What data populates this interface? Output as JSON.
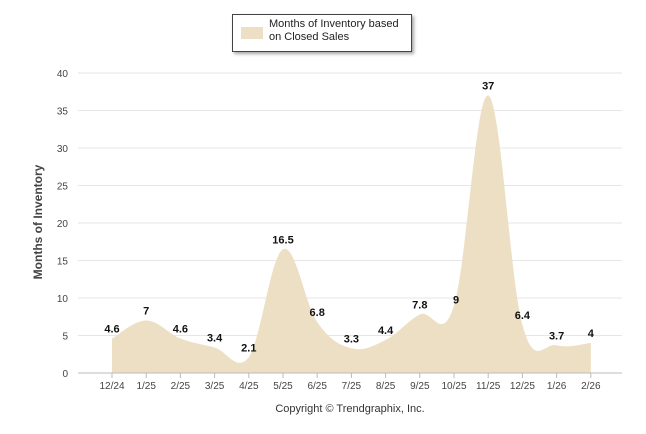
{
  "chart_data": {
    "type": "area",
    "legend": "Months of Inventory based on Closed Sales",
    "legend_position": "top-center",
    "ylabel": "Months of Inventory",
    "xlabel": "",
    "ylim": [
      0,
      40
    ],
    "yticks": [
      0,
      5,
      10,
      15,
      20,
      25,
      30,
      35,
      40
    ],
    "grid": true,
    "categories": [
      "12/24",
      "1/25",
      "2/25",
      "3/25",
      "4/25",
      "5/25",
      "6/25",
      "7/25",
      "8/25",
      "9/25",
      "10/25",
      "11/25",
      "12/25",
      "1/26",
      "2/26"
    ],
    "values": [
      4.6,
      7,
      4.6,
      3.4,
      2.1,
      16.5,
      6.8,
      3.3,
      4.4,
      7.8,
      9,
      37,
      6.4,
      3.7,
      4
    ],
    "fill_color": "#eddfc3",
    "footer": "Copyright © Trendgraphix, Inc."
  }
}
